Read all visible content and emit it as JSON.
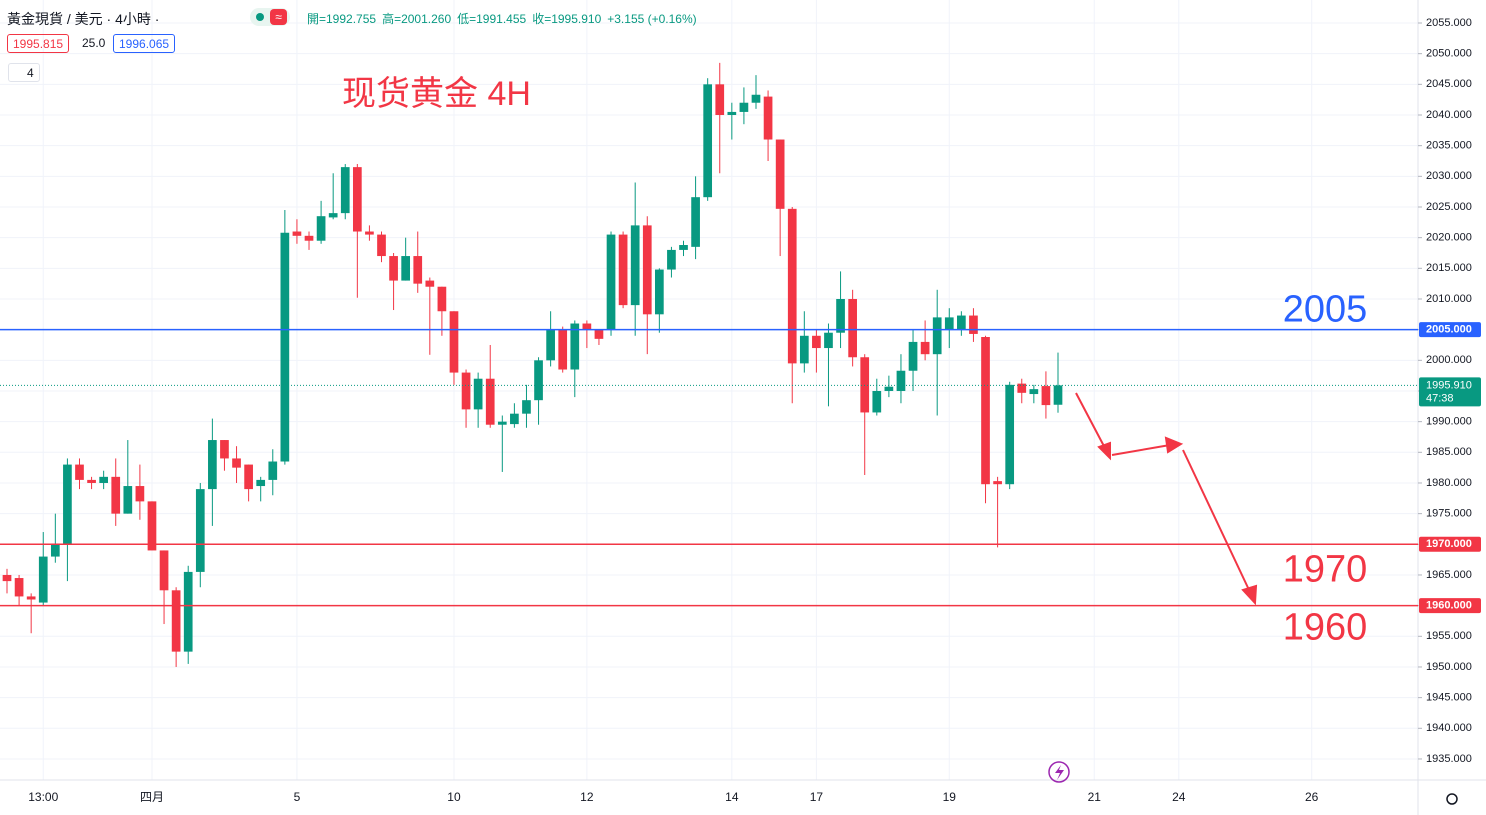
{
  "chart_data": {
    "type": "candlestick",
    "title": "黃金現貨 / 美元 · 4小時 ·",
    "ohlc_legend": [
      "開=1992.755",
      "高=2001.260",
      "低=1991.455",
      "收=1995.910",
      "+3.155 (+0.16%)"
    ],
    "bid": "1995.815",
    "spread": "25.0",
    "ask": "1996.065",
    "indicator_count": "4",
    "annotation": "现货黄金 4H",
    "up_color": "#089981",
    "down_color": "#f23645",
    "grid": true,
    "open": [
      1965,
      1964.5,
      1961.5,
      1960.5,
      1968,
      1970,
      1983,
      1980.5,
      1980,
      1981,
      1975,
      1979.5,
      1977,
      1969,
      1962.5,
      1952.5,
      1965.5,
      1979,
      1987,
      1984,
      1983,
      1979.5,
      1980.5,
      1983.5,
      2021,
      2020.3,
      2019.5,
      2023.3,
      2024,
      2031.5,
      2021,
      2020.5,
      2017,
      2013,
      2017,
      2013,
      2012,
      2008,
      1998,
      1992,
      1997,
      1989.5,
      1989.6,
      1991.3,
      1993.5,
      2000,
      2005,
      1998.5,
      2006,
      2005,
      2005,
      2020.5,
      2009,
      2022,
      2007.5,
      2014.8,
      2018,
      2018.5,
      2026.6,
      2045,
      2040,
      2040.5,
      2042,
      2043,
      2036,
      2024.7,
      1999.5,
      2004,
      2002,
      2004.5,
      2010,
      2000.5,
      1991.5,
      1995,
      1995,
      1998.3,
      2003,
      2001,
      2005,
      2005,
      2007.3,
      2003.8,
      1980.3,
      1979.8,
      1996.2,
      1994.5,
      1995.8,
      1992.755
    ],
    "high": [
      1966,
      1965,
      1962,
      1972,
      1975,
      1984,
      1984,
      1981,
      1982,
      1984,
      1987,
      1983,
      1977,
      1969,
      1963,
      1966.5,
      1980,
      1990.5,
      1987,
      1986,
      1983,
      1981,
      1985.5,
      2024.5,
      2023,
      2021,
      2026,
      2030.5,
      2032,
      2032,
      2022,
      2021,
      2017.5,
      2020,
      2021,
      2013.5,
      2012,
      2008,
      1998.5,
      1998,
      2002.5,
      1991,
      1993,
      1996,
      2000.5,
      2008,
      2005.5,
      2006.5,
      2006.5,
      2005,
      2021,
      2021,
      2029,
      2023.5,
      2015,
      2018.5,
      2019.5,
      2030,
      2046,
      2048.5,
      2042,
      2044.5,
      2046.5,
      2044,
      2036,
      2025,
      2008,
      2005,
      2006,
      2014.5,
      2011.5,
      2001,
      1997,
      1997.5,
      2001,
      2005,
      2006.5,
      2011.5,
      2008.5,
      2008,
      2008.5,
      2004,
      1981,
      1996.5,
      1997,
      1996,
      1998.2,
      2001.26
    ],
    "low": [
      1962,
      1960,
      1955.5,
      1960,
      1967,
      1964,
      1979,
      1979,
      1979,
      1973,
      1975,
      1974,
      1969,
      1957,
      1950,
      1950.5,
      1963,
      1973,
      1982,
      1980,
      1977,
      1977,
      1978,
      1983,
      2019,
      2018,
      2019,
      2023,
      2023,
      2010.2,
      2019.5,
      2016,
      2008.2,
      2013,
      2011,
      2000.9,
      2004,
      1996,
      1989,
      1989,
      1989,
      1981.8,
      1989,
      1989,
      1989.5,
      1999,
      1998,
      1994,
      2002,
      2002.5,
      2004,
      2008.5,
      2004,
      2001,
      2004.5,
      2013.5,
      2017,
      2016.5,
      2026,
      2030.5,
      2036,
      2038.5,
      2041,
      2032.5,
      2017,
      1993,
      1998,
      1998,
      1992.5,
      2002,
      1999,
      1981.3,
      1991,
      1994,
      1993,
      1995,
      2000,
      1991,
      2002,
      2004,
      2003,
      1976.7,
      1969.5,
      1979,
      1993,
      1993,
      1990.5,
      1991.455
    ],
    "close": [
      1964,
      1961.5,
      1961,
      1968,
      1970,
      1983,
      1980.5,
      1980,
      1981,
      1975,
      1979.5,
      1977,
      1969,
      1962.5,
      1952.5,
      1965.5,
      1979,
      1987,
      1984,
      1982.5,
      1979,
      1980.5,
      1983.5,
      2020.8,
      2020.3,
      2019.5,
      2023.5,
      2024,
      2031.5,
      2021,
      2020.5,
      2017,
      2013,
      2017,
      2012.5,
      2012,
      2008,
      1998,
      1992,
      1997,
      1989.5,
      1990,
      1991.3,
      1993.5,
      2000,
      2005,
      1998.5,
      2006,
      2005,
      2003.5,
      2020.5,
      2009,
      2022,
      2007.5,
      2014.8,
      2018,
      2018.8,
      2026.6,
      2045,
      2040,
      2040.5,
      2042,
      2043.3,
      2036,
      2024.7,
      1999.5,
      2004,
      2002,
      2004.5,
      2010,
      2000.5,
      1991.5,
      1995,
      1995.7,
      1998.3,
      2003,
      2001,
      2007,
      2007,
      2007.3,
      2004.3,
      1979.8,
      1979.8,
      1996,
      1994.7,
      1995.3,
      1992.7,
      1995.91
    ],
    "xlim": [
      -0.58,
      116.8
    ],
    "xticks": [
      {
        "value": 3,
        "label": "13:00"
      },
      {
        "value": 12,
        "label": "四月"
      },
      {
        "value": 24,
        "label": "5"
      },
      {
        "value": 37,
        "label": "10"
      },
      {
        "value": 48,
        "label": "12"
      },
      {
        "value": 60,
        "label": "14"
      },
      {
        "value": 67,
        "label": "17"
      },
      {
        "value": 78,
        "label": "19"
      },
      {
        "value": 90,
        "label": "21"
      },
      {
        "value": 97,
        "label": "24"
      },
      {
        "value": 108,
        "label": "26"
      }
    ],
    "ylim": [
      1931.57,
      2058.75
    ],
    "yticks": [
      {
        "value": 1935,
        "label": "1935.000"
      },
      {
        "value": 1940,
        "label": "1940.000"
      },
      {
        "value": 1945,
        "label": "1945.000"
      },
      {
        "value": 1950,
        "label": "1950.000"
      },
      {
        "value": 1955,
        "label": "1955.000"
      },
      {
        "value": 1960,
        "label": "1960.000"
      },
      {
        "value": 1965,
        "label": "1965.000"
      },
      {
        "value": 1970,
        "label": "1970.000"
      },
      {
        "value": 1975,
        "label": "1975.000"
      },
      {
        "value": 1980,
        "label": "1980.000"
      },
      {
        "value": 1985,
        "label": "1985.000"
      },
      {
        "value": 1990,
        "label": "1990.000"
      },
      {
        "value": 1995,
        "label": "1995.000"
      },
      {
        "value": 2000,
        "label": "2000.000"
      },
      {
        "value": 2005,
        "label": "2005.000"
      },
      {
        "value": 2010,
        "label": "2010.000"
      },
      {
        "value": 2015,
        "label": "2015.000"
      },
      {
        "value": 2020,
        "label": "2020.000"
      },
      {
        "value": 2025,
        "label": "2025.000"
      },
      {
        "value": 2030,
        "label": "2030.000"
      },
      {
        "value": 2035,
        "label": "2035.000"
      },
      {
        "value": 2040,
        "label": "2040.000"
      },
      {
        "value": 2045,
        "label": "2045.000"
      },
      {
        "value": 2050,
        "label": "2050.000"
      },
      {
        "value": 2055,
        "label": "2055.000"
      }
    ],
    "hlines": [
      {
        "value": 2005,
        "label": "2005.000",
        "note": "2005",
        "color": "#2962ff"
      },
      {
        "value": 1970,
        "label": "1970.000",
        "note": "1970",
        "color": "#f23645"
      },
      {
        "value": 1960,
        "label": "1960.000",
        "note": "1960",
        "color": "#f23645"
      }
    ],
    "last_price": {
      "value": 1995.91,
      "label": "1995.910",
      "countdown": "47:38",
      "color": "#089981"
    }
  }
}
